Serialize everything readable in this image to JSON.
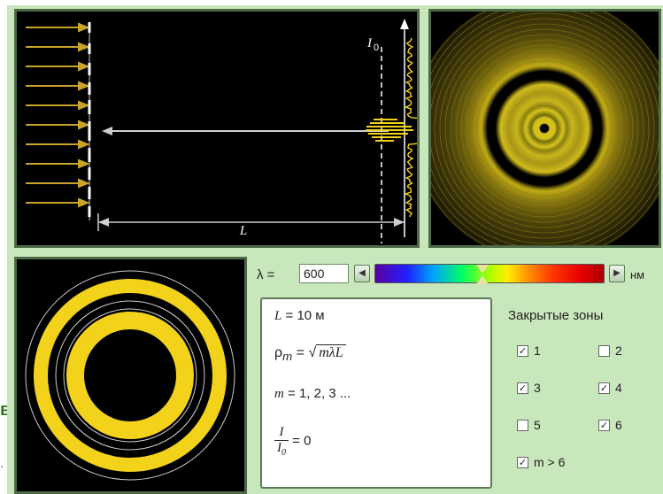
{
  "setup": {
    "screen_intensity_label": "I",
    "screen_intensity_sub": "0",
    "distance_label": "L"
  },
  "controls": {
    "lambda_label": "λ =",
    "lambda_value": "600",
    "wavelength_fraction": 0.47,
    "unit": "нм"
  },
  "info": {
    "L_var": "L",
    "L_value": "= 10 м",
    "rho_symbol": "ρ",
    "rho_sub": "m",
    "rho_eq": "=",
    "sqrt_expr": "mλL",
    "m_var": "m",
    "m_values": "= 1, 2, 3 ...",
    "ratio_num": "I",
    "ratio_den": "I",
    "ratio_den_sub": "0",
    "ratio_value": "= 0"
  },
  "zones": {
    "title": "Закрытые зоны",
    "items": [
      {
        "label": "1",
        "checked": true
      },
      {
        "label": "2",
        "checked": false
      },
      {
        "label": "3",
        "checked": true
      },
      {
        "label": "4",
        "checked": true
      },
      {
        "label": "5",
        "checked": false
      },
      {
        "label": "6",
        "checked": true
      },
      {
        "label": "m > 6",
        "checked": true
      }
    ]
  },
  "side": {
    "text": "в",
    "dot": "."
  },
  "colors": {
    "background": "#c9e7bd",
    "panel": "#000000",
    "ring_yellow": "#f2d21b"
  }
}
